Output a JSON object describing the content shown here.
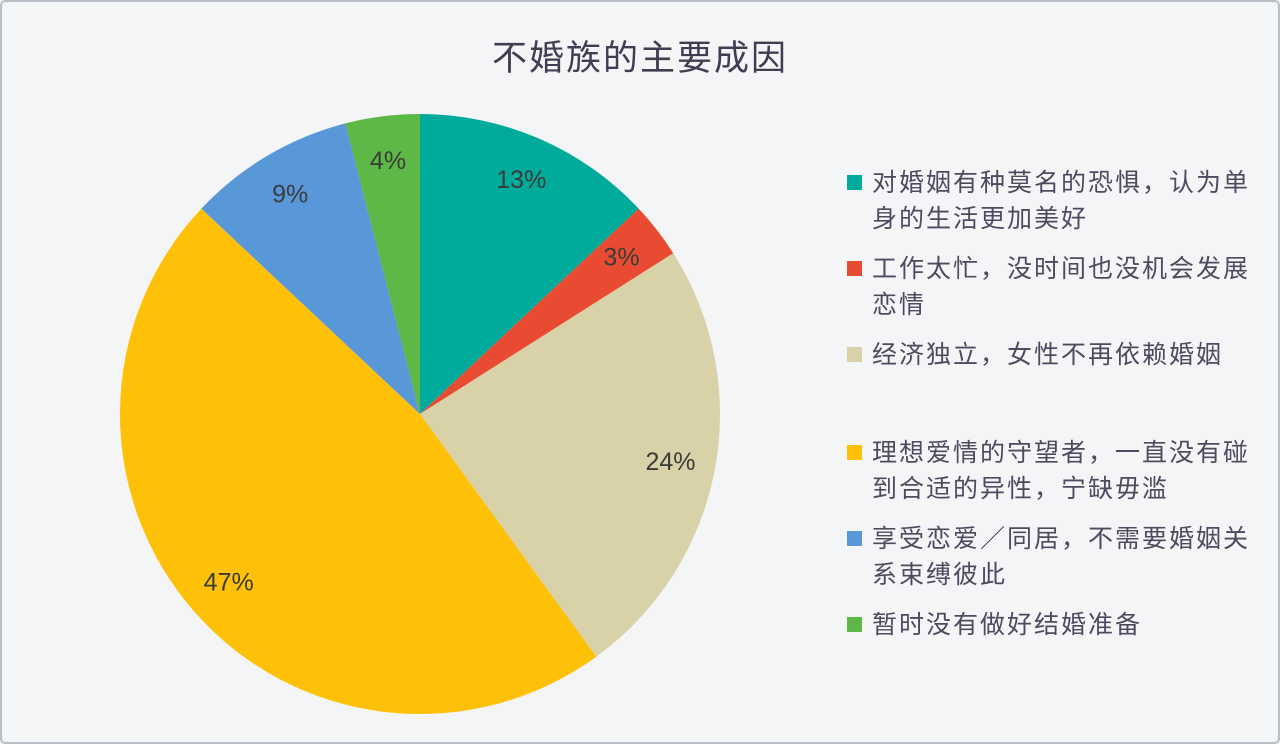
{
  "panel": {
    "background_color": "#f4f5f7",
    "border_color": "#b8bec6"
  },
  "chart_data": {
    "type": "pie",
    "title": "不婚族的主要成因",
    "legend_position": "right",
    "direction": "clockwise",
    "start_angle_deg": 0,
    "label_radius_ratio": 0.85,
    "label_color": "#3b3b3b",
    "slices": [
      {
        "label": "对婚姻有种莫名的恐惧，认为单身的生活更加美好",
        "value": 13,
        "percent_label": "13%",
        "color": "#00AB9B"
      },
      {
        "label": "工作太忙，没时间也没机会发展恋情",
        "value": 3,
        "percent_label": "3%",
        "color": "#E84B31"
      },
      {
        "label": "经济独立，女性不再依赖婚姻",
        "value": 24,
        "percent_label": "24%",
        "color": "#D9D2A9"
      },
      {
        "label": "理想爱情的守望者，一直没有碰到合适的异性，宁缺毋滥",
        "value": 47,
        "percent_label": "47%",
        "color": "#FFC107"
      },
      {
        "label": "享受恋爱／同居，不需要婚姻关系束缚彼此",
        "value": 9,
        "percent_label": "9%",
        "color": "#5897D8"
      },
      {
        "label": "暂时没有做好结婚准备",
        "value": 4,
        "percent_label": "4%",
        "color": "#5CB945"
      }
    ]
  }
}
